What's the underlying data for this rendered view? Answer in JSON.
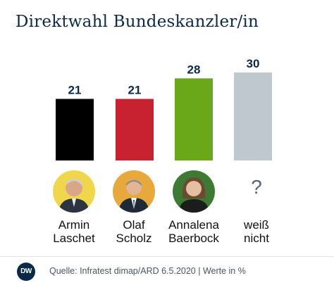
{
  "title": "Direktwahl Bundeskanzler/in",
  "chart_data": {
    "type": "bar",
    "categories": [
      "Armin Laschet",
      "Olaf Scholz",
      "Annalena Baerbock",
      "weiß nicht"
    ],
    "values": [
      21,
      21,
      28,
      30
    ],
    "colors": [
      "#000000",
      "#c8212f",
      "#6aa819",
      "#c0c8cf"
    ],
    "title": "Direktwahl Bundeskanzler/in",
    "xlabel": "",
    "ylabel": "",
    "ylim": [
      0,
      30
    ],
    "grid": false,
    "legend": "none"
  },
  "candidates": [
    {
      "line1": "Armin",
      "line2": "Laschet",
      "icon": "portrait-laschet"
    },
    {
      "line1": "Olaf",
      "line2": "Scholz",
      "icon": "portrait-scholz"
    },
    {
      "line1": "Annalena",
      "line2": "Baerbock",
      "icon": "portrait-baerbock"
    },
    {
      "line1": "weiß",
      "line2": "nicht",
      "icon": "question-mark",
      "symbol": "?"
    }
  ],
  "footer": {
    "logo_text": "DW",
    "source": "Quelle: Infratest dimap/ARD 6.5.2020 | Werte in %"
  }
}
